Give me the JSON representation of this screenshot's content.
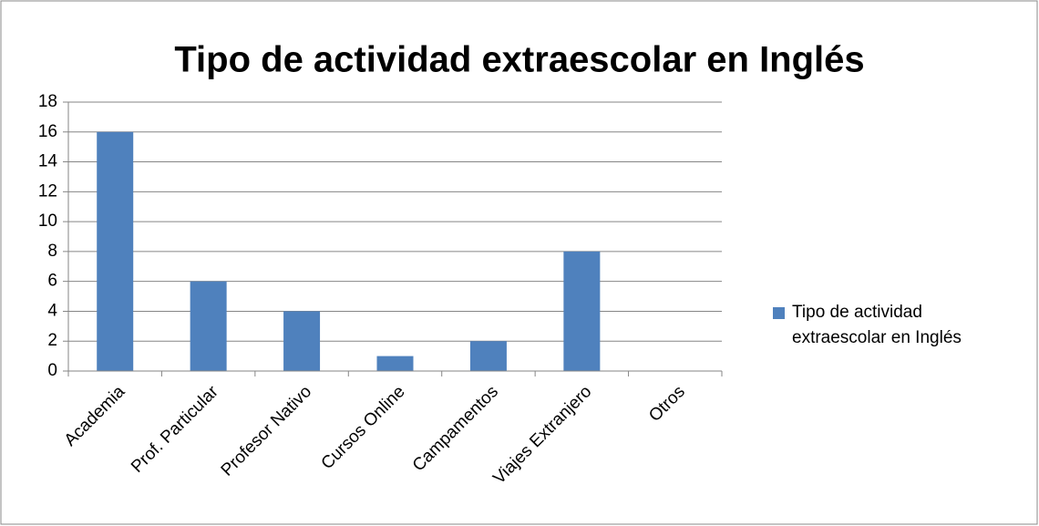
{
  "chart_data": {
    "type": "bar",
    "title": "Tipo de actividad extraescolar en Inglés",
    "categories": [
      "Academia",
      "Prof. Particular",
      "Profesor Nativo",
      "Cursos Online",
      "Campamentos",
      "Viajes Extranjero",
      "Otros"
    ],
    "series": [
      {
        "name": "Tipo de actividad extraescolar en Inglés",
        "color": "#4f81bd",
        "values": [
          16,
          6,
          4,
          1,
          2,
          8,
          0
        ]
      }
    ],
    "ylim": [
      0,
      18
    ],
    "yticks": [
      0,
      2,
      4,
      6,
      8,
      10,
      12,
      14,
      16,
      18
    ],
    "grid": true,
    "legend": "right"
  }
}
